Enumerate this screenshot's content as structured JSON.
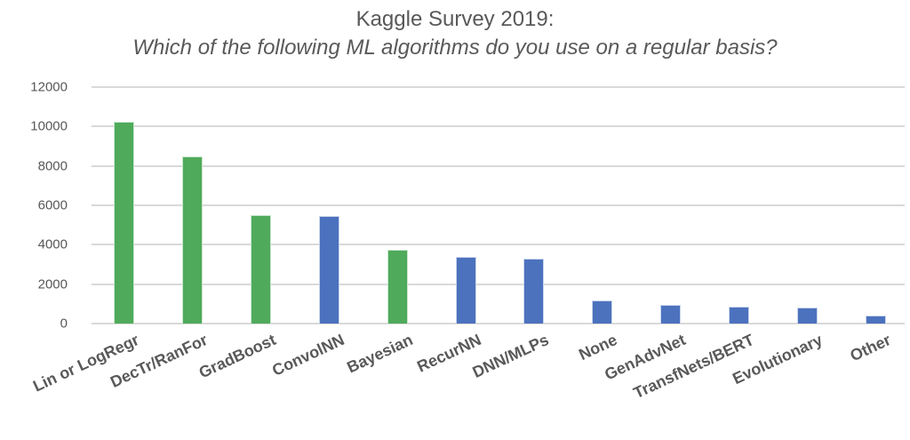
{
  "chart_data": {
    "type": "bar",
    "title": "Kaggle Survey 2019:",
    "subtitle": "Which of the following ML algorithms do you use on a regular basis?",
    "xlabel": "",
    "ylabel": "",
    "ylim": [
      0,
      12000
    ],
    "yticks": [
      "0",
      "2000",
      "4000",
      "6000",
      "8000",
      "10000",
      "12000"
    ],
    "grid": true,
    "legend": null,
    "categories": [
      "Lin or LogRegr",
      "DecTr/RanFor",
      "GradBoost",
      "ConvolNN",
      "Bayesian",
      "RecurNN",
      "DNN/MLPs",
      "None",
      "GenAdvNet",
      "TransfNets/BERT",
      "Evolutionary",
      "Other"
    ],
    "values": [
      10240,
      8480,
      5500,
      5460,
      3740,
      3380,
      3290,
      1170,
      950,
      860,
      810,
      400
    ],
    "bar_colors": [
      "#4faa5b",
      "#4faa5b",
      "#4faa5b",
      "#4c72be",
      "#4faa5b",
      "#4c72be",
      "#4c72be",
      "#4c72be",
      "#4c72be",
      "#4c72be",
      "#4c72be",
      "#4c72be"
    ],
    "color_groups": {
      "green": "#4faa5b",
      "blue": "#4c72be"
    }
  }
}
